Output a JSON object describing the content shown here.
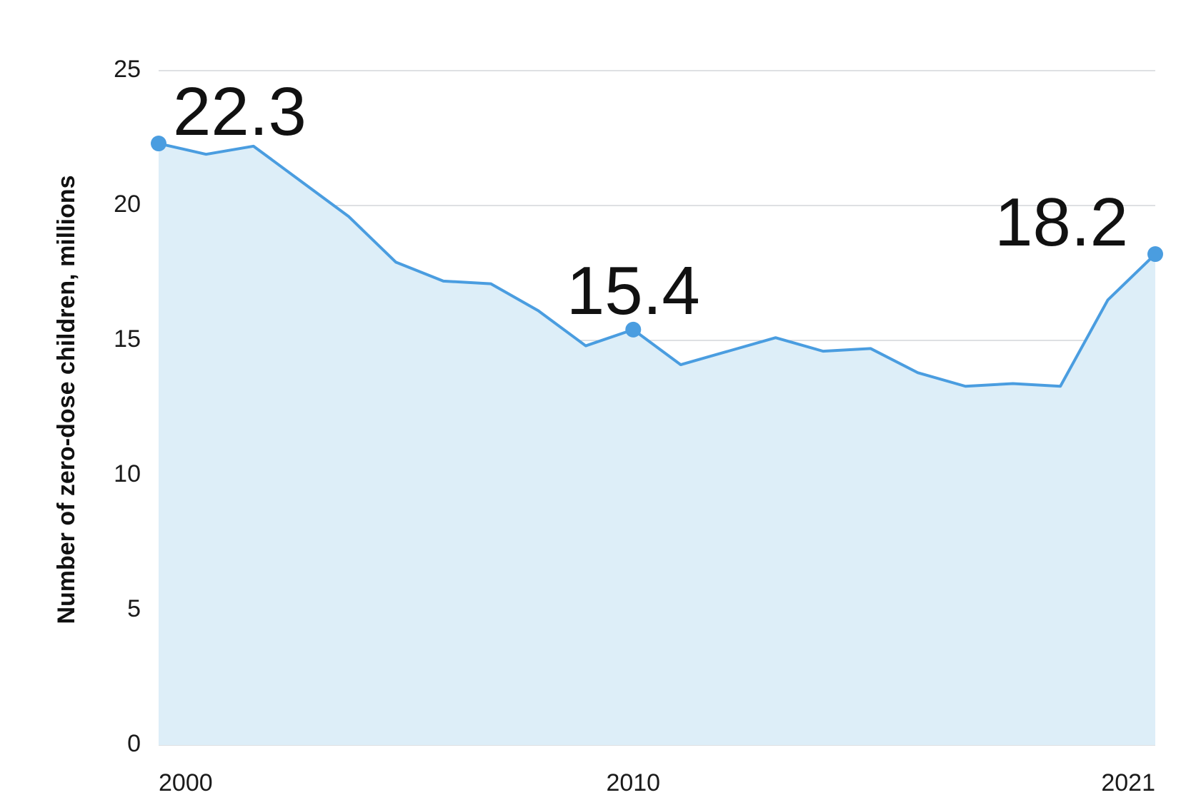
{
  "chart_data": {
    "type": "area",
    "title": "",
    "xlabel": "",
    "ylabel": "Number of zero-dose children, millions",
    "x": [
      2000,
      2001,
      2002,
      2003,
      2004,
      2005,
      2006,
      2007,
      2008,
      2009,
      2010,
      2011,
      2012,
      2013,
      2014,
      2015,
      2016,
      2017,
      2018,
      2019,
      2020,
      2021
    ],
    "series": [
      {
        "values": [
          22.3,
          21.9,
          22.2,
          20.9,
          19.6,
          17.9,
          17.2,
          17.1,
          16.1,
          14.8,
          15.4,
          14.1,
          14.6,
          15.1,
          14.6,
          14.7,
          13.8,
          13.3,
          13.4,
          13.3,
          16.5,
          18.2
        ],
        "color": "#4a9de0",
        "fill": "#ddeef8"
      }
    ],
    "ylim": [
      0,
      25
    ],
    "yticks": [
      "0",
      "5",
      "10",
      "15",
      "20",
      "25"
    ],
    "xticks": [
      {
        "x": 2000,
        "label": "2000"
      },
      {
        "x": 2010,
        "label": "2010"
      },
      {
        "x": 2021,
        "label": "2021"
      }
    ],
    "annotations": [
      {
        "x": 2000,
        "y": 22.3,
        "text": "22.3"
      },
      {
        "x": 2010,
        "y": 15.4,
        "text": "15.4"
      },
      {
        "x": 2021,
        "y": 18.2,
        "text": "18.2"
      }
    ],
    "grid": true,
    "legend": "none"
  }
}
